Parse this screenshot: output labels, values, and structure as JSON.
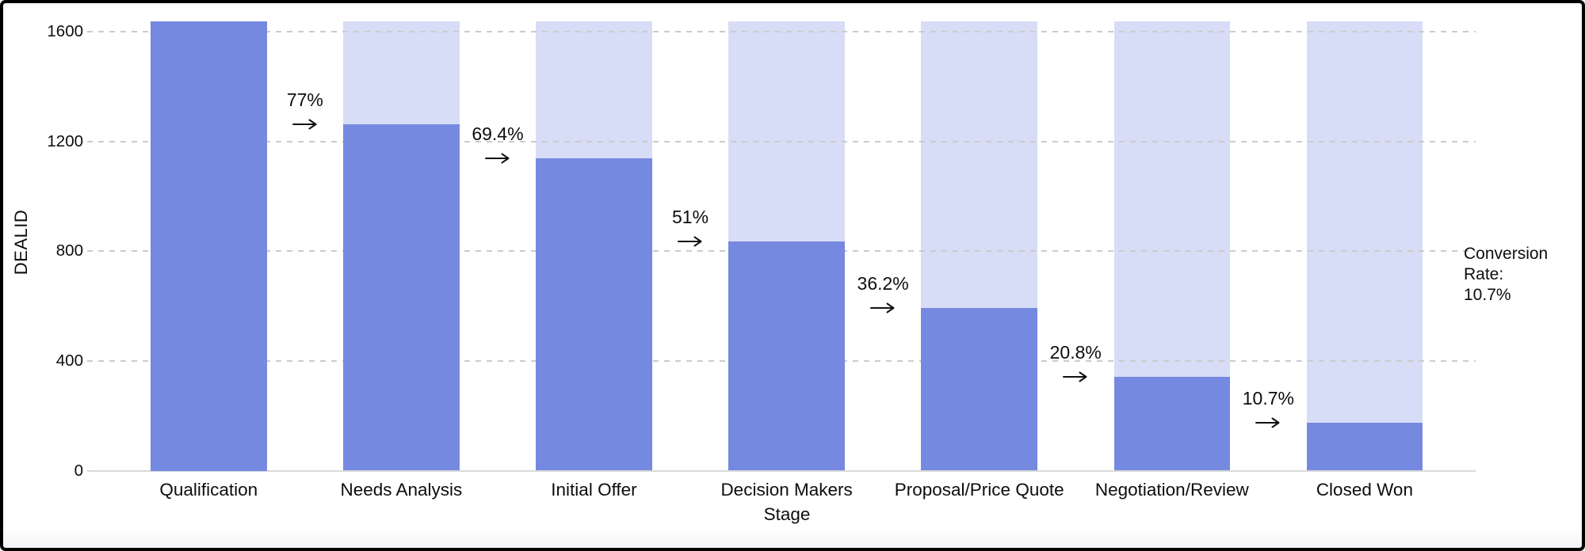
{
  "chart_data": {
    "type": "bar",
    "subtype": "funnel",
    "title": "",
    "xlabel": "Stage",
    "ylabel": "DEALID",
    "categories": [
      "Qualification",
      "Needs Analysis",
      "Initial Offer",
      "Decision Makers",
      "Proposal/Price Quote",
      "Negotiation/Review",
      "Closed Won"
    ],
    "values": [
      1640,
      1263,
      1138,
      836,
      594,
      341,
      175
    ],
    "stage_conversion_labels": [
      "77%",
      "69.4%",
      "51%",
      "36.2%",
      "20.8%",
      "10.7%"
    ],
    "y_ticks": [
      0,
      400,
      800,
      1200,
      1600
    ],
    "ylim": [
      0,
      1640
    ],
    "grid": "horizontal-dashed",
    "legend": "none",
    "annotation": {
      "line1": "Conversion Rate:",
      "line2": "10.7%"
    },
    "colors": {
      "bar": "#7589E0",
      "bar_background": "#D7DDF6",
      "gridline": "#CBCBCB",
      "baseline": "#DADADA",
      "text": "#0D0D0D",
      "arrow": "#111111",
      "frame": "#000000"
    }
  }
}
